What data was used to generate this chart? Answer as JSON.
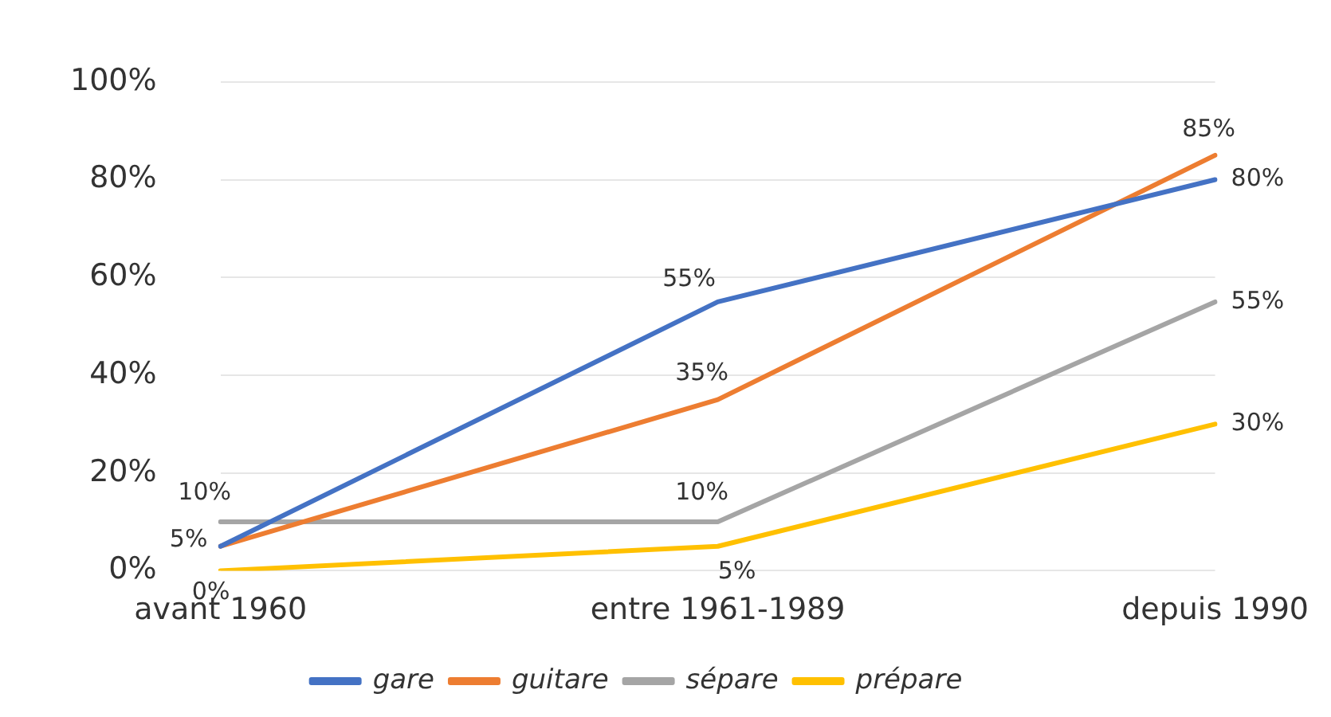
{
  "chart_data": {
    "type": "line",
    "categories": [
      "avant 1960",
      "entre 1961-1989",
      "depuis 1990"
    ],
    "series": [
      {
        "name": "gare",
        "color": "#4472c4",
        "values": [
          5,
          55,
          80
        ],
        "value_labels": [
          null,
          "55%",
          "80%"
        ]
      },
      {
        "name": "guitare",
        "color": "#ed7d31",
        "values": [
          5,
          35,
          85
        ],
        "value_labels": [
          "5%",
          "35%",
          "85%"
        ]
      },
      {
        "name": "sépare",
        "color": "#a5a5a5",
        "values": [
          10,
          10,
          55
        ],
        "value_labels": [
          "10%",
          "10%",
          "55%"
        ]
      },
      {
        "name": "prépare",
        "color": "#ffc000",
        "values": [
          0,
          5,
          30
        ],
        "value_labels": [
          "0%",
          "5%",
          "30%"
        ]
      }
    ],
    "ylim": [
      0,
      100
    ],
    "yticks": [
      {
        "value": 0,
        "label": "0%"
      },
      {
        "value": 20,
        "label": "20%"
      },
      {
        "value": 40,
        "label": "40%"
      },
      {
        "value": 60,
        "label": "60%"
      },
      {
        "value": 80,
        "label": "80%"
      },
      {
        "value": 100,
        "label": "100%"
      }
    ],
    "grid": "y",
    "legend": "bottom",
    "marker": "none",
    "line_style": "solid"
  }
}
